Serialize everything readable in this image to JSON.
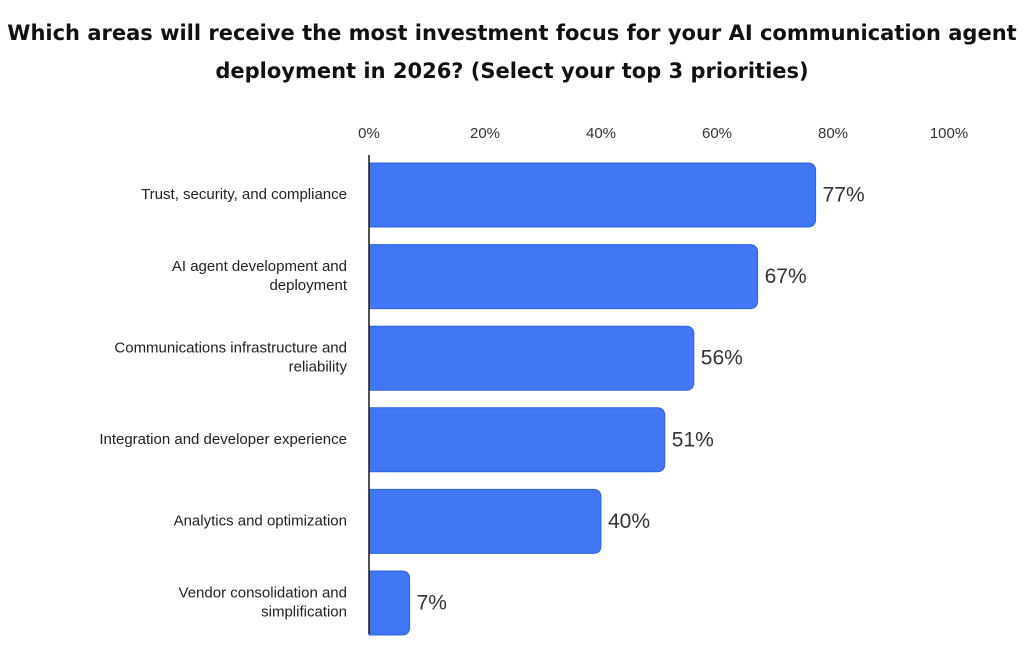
{
  "title_lines": [
    "Which areas will receive the most investment focus for your AI communication agent",
    "deployment in 2026? (Select your top 3 priorities)"
  ],
  "colors": {
    "bar": "#4177F5",
    "bar_edge": "#2F62DF",
    "axis": "#1a1a1a"
  },
  "chart_data": {
    "type": "bar",
    "orientation": "horizontal",
    "title": "Which areas will receive the most investment focus for your AI communication agent deployment in 2026? (Select your top 3 priorities)",
    "categories": [
      [
        "Trust, security, and compliance"
      ],
      [
        "AI agent development and",
        "deployment"
      ],
      [
        "Communications infrastructure and",
        "reliability"
      ],
      [
        "Integration and developer experience"
      ],
      [
        "Analytics and optimization"
      ],
      [
        "Vendor consolidation and",
        "simplification"
      ]
    ],
    "values": [
      77,
      67,
      56,
      51,
      40,
      7
    ],
    "value_labels": [
      "77%",
      "67%",
      "56%",
      "51%",
      "40%",
      "7%"
    ],
    "xlim": [
      0,
      100
    ],
    "xticks": [
      0,
      20,
      40,
      60,
      80,
      100
    ],
    "xtick_labels": [
      "0%",
      "20%",
      "40%",
      "60%",
      "80%",
      "100%"
    ],
    "xaxis_position": "top",
    "grid": false,
    "legend": "none"
  }
}
